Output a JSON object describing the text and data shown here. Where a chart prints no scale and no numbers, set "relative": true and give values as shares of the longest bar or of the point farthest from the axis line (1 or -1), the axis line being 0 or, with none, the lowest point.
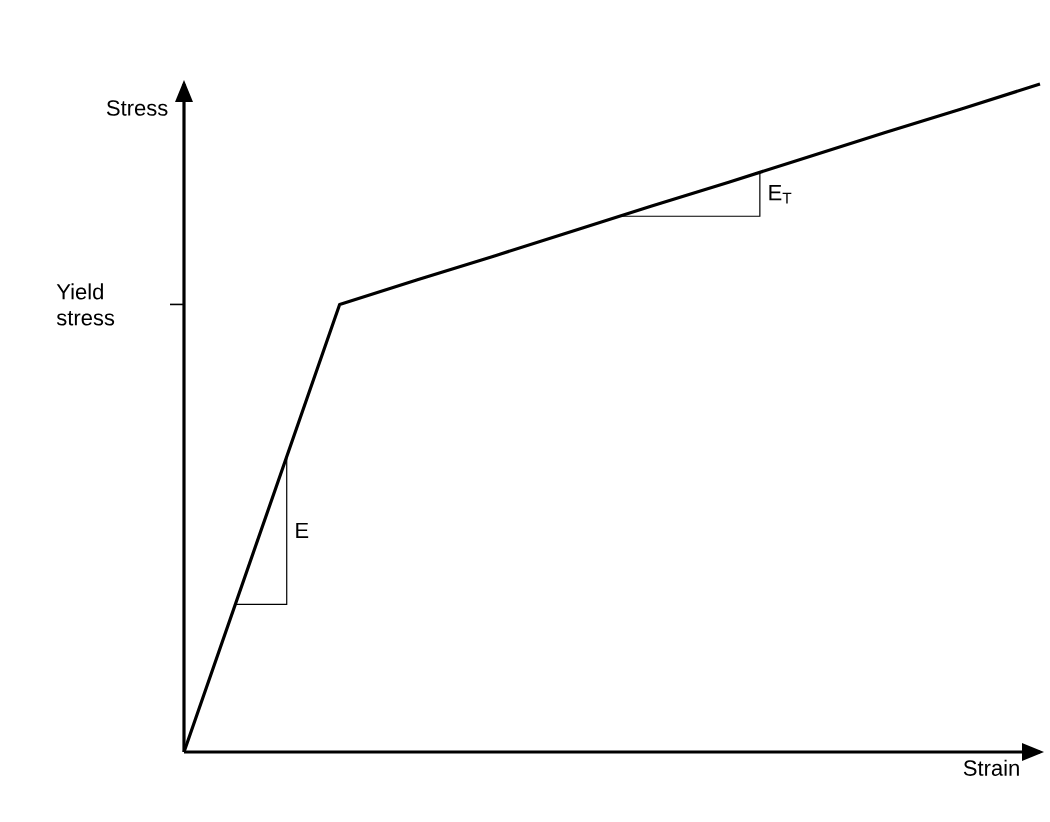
{
  "chart_data": {
    "type": "line",
    "relative": true,
    "xlabel": "Strain",
    "ylabel": "Stress",
    "categories": [
      null,
      null,
      null,
      null,
      null,
      null,
      null,
      null,
      null,
      null,
      null,
      null
    ],
    "series": [
      {
        "color": "#000000",
        "values": [
          0,
          0.335,
          0.67,
          0.707,
          0.743,
          0.78,
          0.817,
          0.853,
          0.89,
          0.927,
          0.963,
          1
        ]
      }
    ],
    "annotations": [
      "Yield stress",
      "E",
      "E$_{T}$"
    ],
    "marker": "none",
    "line_style": "solid"
  }
}
